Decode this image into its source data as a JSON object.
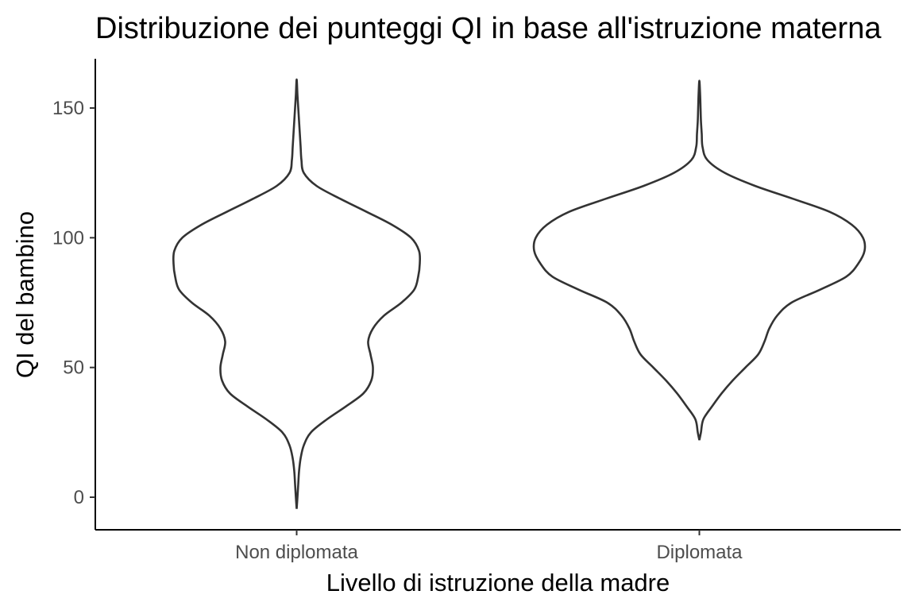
{
  "chart_data": {
    "type": "violin",
    "title": "Distribuzione dei punteggi QI in base all'istruzione materna",
    "xlabel": "Livello di istruzione della madre",
    "ylabel": "QI del bambino",
    "categories": [
      "Non diplomata",
      "Diplomata"
    ],
    "ylim": [
      -12,
      168
    ],
    "yticks": [
      0,
      50,
      100,
      150
    ],
    "grid": false,
    "legend": "none",
    "series": [
      {
        "category": "Non diplomata",
        "min": -4.5,
        "max": 161,
        "density_half_width": [
          [
            -4.5,
            0
          ],
          [
            0,
            1
          ],
          [
            5,
            2
          ],
          [
            10,
            3
          ],
          [
            15,
            5
          ],
          [
            20,
            9
          ],
          [
            25,
            18
          ],
          [
            30,
            38
          ],
          [
            35,
            62
          ],
          [
            40,
            84
          ],
          [
            45,
            94
          ],
          [
            50,
            96
          ],
          [
            55,
            93
          ],
          [
            60,
            90
          ],
          [
            65,
            96
          ],
          [
            70,
            110
          ],
          [
            75,
            132
          ],
          [
            80,
            148
          ],
          [
            85,
            153
          ],
          [
            90,
            155
          ],
          [
            95,
            154
          ],
          [
            100,
            144
          ],
          [
            105,
            120
          ],
          [
            110,
            88
          ],
          [
            115,
            55
          ],
          [
            120,
            25
          ],
          [
            125,
            9
          ],
          [
            130,
            6
          ],
          [
            135,
            5
          ],
          [
            140,
            4
          ],
          [
            145,
            3
          ],
          [
            150,
            2
          ],
          [
            155,
            1
          ],
          [
            161,
            0
          ]
        ]
      },
      {
        "category": "Diplomata",
        "min": 22,
        "max": 160.5,
        "density_half_width": [
          [
            22,
            0
          ],
          [
            25,
            2
          ],
          [
            30,
            5
          ],
          [
            35,
            16
          ],
          [
            40,
            28
          ],
          [
            45,
            42
          ],
          [
            50,
            58
          ],
          [
            55,
            74
          ],
          [
            60,
            82
          ],
          [
            65,
            88
          ],
          [
            70,
            98
          ],
          [
            75,
            116
          ],
          [
            80,
            152
          ],
          [
            85,
            185
          ],
          [
            90,
            200
          ],
          [
            95,
            208
          ],
          [
            100,
            206
          ],
          [
            105,
            192
          ],
          [
            110,
            164
          ],
          [
            115,
            118
          ],
          [
            120,
            70
          ],
          [
            125,
            32
          ],
          [
            130,
            10
          ],
          [
            135,
            4
          ],
          [
            140,
            3
          ],
          [
            145,
            2
          ],
          [
            150,
            1.5
          ],
          [
            155,
            1
          ],
          [
            160.5,
            0
          ]
        ]
      }
    ]
  }
}
